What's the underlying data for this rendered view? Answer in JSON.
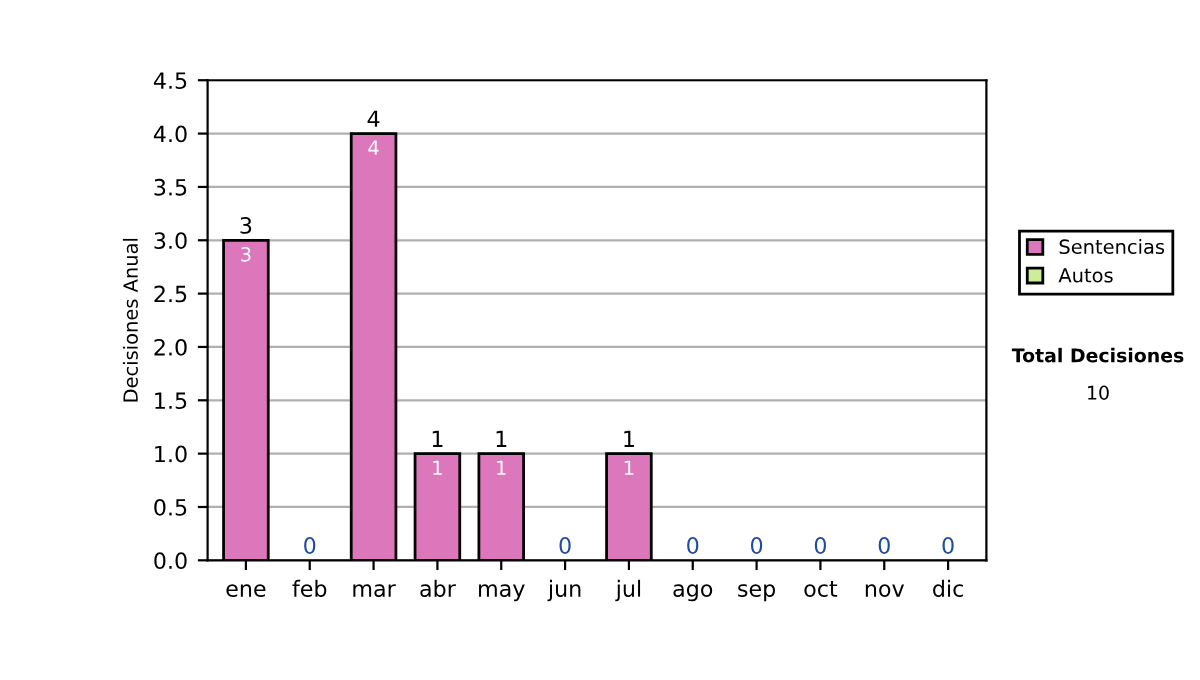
{
  "chart_data": {
    "type": "bar",
    "ylabel": "Decisiones Anual",
    "stacked": true,
    "categories": [
      "ene",
      "feb",
      "mar",
      "abr",
      "may",
      "jun",
      "jul",
      "ago",
      "sep",
      "oct",
      "nov",
      "dic"
    ],
    "series": [
      {
        "name": "Sentencias",
        "color": "#dd77bb",
        "values": [
          3,
          0,
          4,
          1,
          1,
          0,
          1,
          0,
          0,
          0,
          0,
          0
        ],
        "value_labels": [
          "3",
          null,
          "4",
          "1",
          "1",
          null,
          "1",
          null,
          null,
          null,
          null,
          null
        ]
      },
      {
        "name": "Autos",
        "color": "#ccee99",
        "values": [
          0,
          0,
          0,
          0,
          0,
          0,
          0,
          0,
          0,
          0,
          0,
          0
        ]
      }
    ],
    "totals": [
      "3",
      "0",
      "4",
      "1",
      "1",
      "0",
      "1",
      "0",
      "0",
      "0",
      "0",
      "0"
    ],
    "ylim": [
      0,
      4.5
    ],
    "yticks": [
      {
        "value": 0,
        "label": "0.0"
      },
      {
        "value": 0.5,
        "label": "0.5"
      },
      {
        "value": 1,
        "label": "1.0"
      },
      {
        "value": 1.5,
        "label": "1.5"
      },
      {
        "value": 2,
        "label": "2.0"
      },
      {
        "value": 2.5,
        "label": "2.5"
      },
      {
        "value": 3,
        "label": "3.0"
      },
      {
        "value": 3.5,
        "label": "3.5"
      },
      {
        "value": 4,
        "label": "4.0"
      },
      {
        "value": 4.5,
        "label": "4.5"
      }
    ],
    "grid": "y",
    "legend": "right",
    "annotations": [
      "Total Decisiones",
      "10"
    ]
  }
}
